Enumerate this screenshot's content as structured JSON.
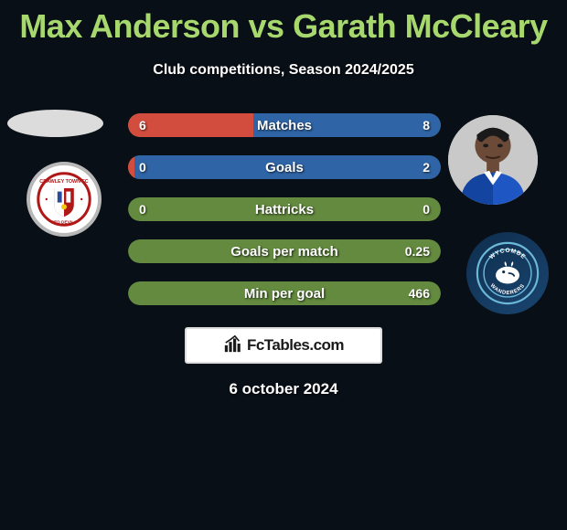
{
  "title": "Max Anderson vs Garath McCleary",
  "subtitle": "Club competitions, Season 2024/2025",
  "date": "6 october 2024",
  "brand": "FcTables.com",
  "colors": {
    "title": "#a7d86e",
    "background": "#090f17",
    "left_fill": "#d34d3e",
    "right_fill": "#2f65a6",
    "track": "#6b8a4a",
    "track_alt": "#3a6128"
  },
  "bars": [
    {
      "label": "Matches",
      "left_value": "6",
      "right_value": "8",
      "left_pct": 40,
      "right_pct": 60,
      "left_color": "#d34d3e",
      "right_color": "#2f65a6",
      "track_color": "#6b8a4a"
    },
    {
      "label": "Goals",
      "left_value": "0",
      "right_value": "2",
      "left_pct": 2,
      "right_pct": 98,
      "left_color": "#d34d3e",
      "right_color": "#2f65a6",
      "track_color": "#6b8a4a"
    },
    {
      "label": "Hattricks",
      "left_value": "0",
      "right_value": "0",
      "left_pct": 0,
      "right_pct": 0,
      "left_color": "#d34d3e",
      "right_color": "#2f65a6",
      "track_color": "#638a3e"
    },
    {
      "label": "Goals per match",
      "left_value": "",
      "right_value": "0.25",
      "left_pct": 0,
      "right_pct": 0,
      "left_color": "#d34d3e",
      "right_color": "#2f65a6",
      "track_color": "#638a3e"
    },
    {
      "label": "Min per goal",
      "left_value": "",
      "right_value": "466",
      "left_pct": 0,
      "right_pct": 0,
      "left_color": "#d34d3e",
      "right_color": "#2f65a6",
      "track_color": "#638a3e"
    }
  ]
}
